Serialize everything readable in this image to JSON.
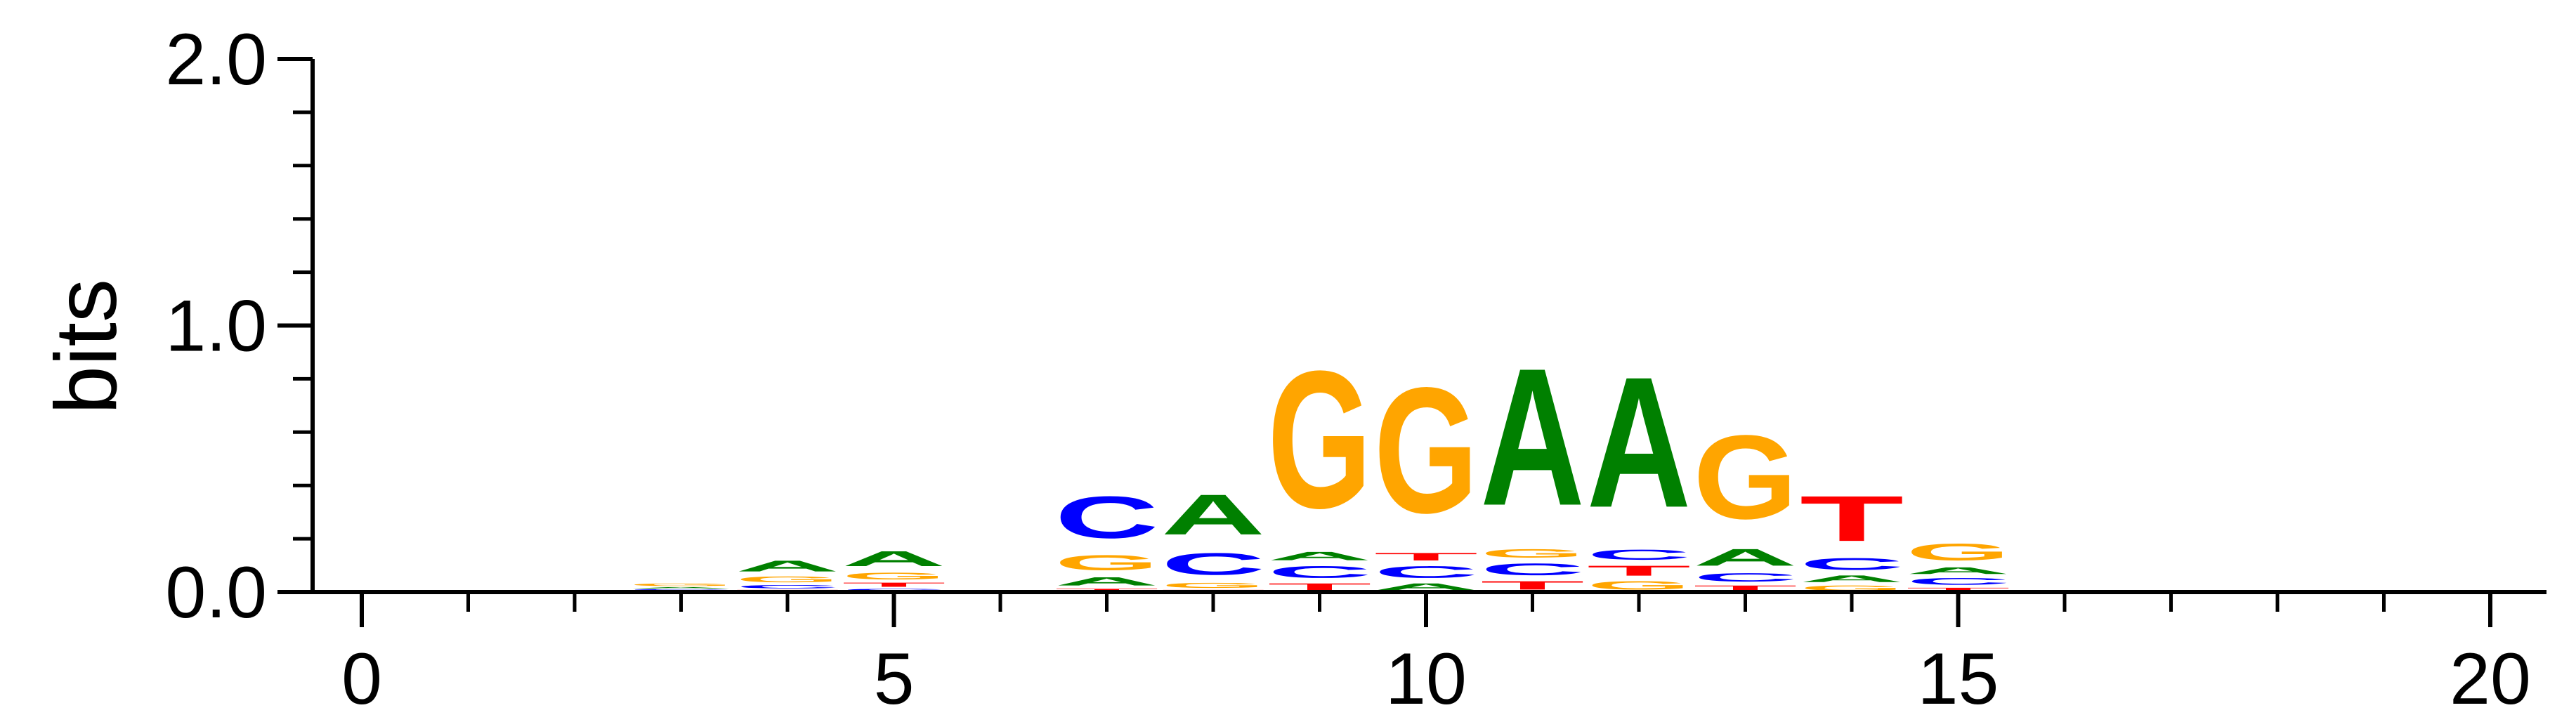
{
  "chart_data": {
    "type": "sequence-logo",
    "ylabel": "bits",
    "xlim": [
      0,
      20
    ],
    "ylim": [
      0,
      2.0
    ],
    "x_ticks": [
      0,
      5,
      10,
      15,
      20
    ],
    "y_ticks": [
      0.0,
      1.0,
      2.0
    ],
    "x_tick_labels": [
      "0",
      "5",
      "10",
      "15",
      "20"
    ],
    "y_tick_labels": [
      "0.0",
      "1.0",
      "2.0"
    ],
    "colors": {
      "A": "#008000",
      "C": "#0000ff",
      "G": "#ffa500",
      "T": "#ff0000"
    },
    "positions": [
      {
        "x": 3,
        "stack": [
          {
            "letter": "T",
            "bits": 0.005
          },
          {
            "letter": "C",
            "bits": 0.007
          },
          {
            "letter": "A",
            "bits": 0.008
          },
          {
            "letter": "G",
            "bits": 0.015
          }
        ]
      },
      {
        "x": 4,
        "stack": [
          {
            "letter": "T",
            "bits": 0.01
          },
          {
            "letter": "C",
            "bits": 0.02
          },
          {
            "letter": "G",
            "bits": 0.035
          },
          {
            "letter": "A",
            "bits": 0.065
          }
        ]
      },
      {
        "x": 5,
        "stack": [
          {
            "letter": "C",
            "bits": 0.015
          },
          {
            "letter": "T",
            "bits": 0.025
          },
          {
            "letter": "G",
            "bits": 0.04
          },
          {
            "letter": "A",
            "bits": 0.09
          }
        ]
      },
      {
        "x": 7,
        "stack": [
          {
            "letter": "T",
            "bits": 0.015
          },
          {
            "letter": "A",
            "bits": 0.05
          },
          {
            "letter": "G",
            "bits": 0.09
          },
          {
            "letter": "C",
            "bits": 0.25
          }
        ]
      },
      {
        "x": 8,
        "stack": [
          {
            "letter": "T",
            "bits": 0.01
          },
          {
            "letter": "G",
            "bits": 0.03
          },
          {
            "letter": "C",
            "bits": 0.13
          },
          {
            "letter": "A",
            "bits": 0.24
          }
        ]
      },
      {
        "x": 9,
        "stack": [
          {
            "letter": "T",
            "bits": 0.04
          },
          {
            "letter": "C",
            "bits": 0.07
          },
          {
            "letter": "A",
            "bits": 0.05
          },
          {
            "letter": "G",
            "bits": 0.82
          }
        ]
      },
      {
        "x": 10,
        "stack": [
          {
            "letter": "A",
            "bits": 0.04
          },
          {
            "letter": "C",
            "bits": 0.07
          },
          {
            "letter": "T",
            "bits": 0.045
          },
          {
            "letter": "G",
            "bits": 0.75
          }
        ]
      },
      {
        "x": 11,
        "stack": [
          {
            "letter": "T",
            "bits": 0.05
          },
          {
            "letter": "C",
            "bits": 0.07
          },
          {
            "letter": "G",
            "bits": 0.05
          },
          {
            "letter": "A",
            "bits": 0.82
          }
        ]
      },
      {
        "x": 12,
        "stack": [
          {
            "letter": "G",
            "bits": 0.05
          },
          {
            "letter": "T",
            "bits": 0.06
          },
          {
            "letter": "C",
            "bits": 0.06
          },
          {
            "letter": "A",
            "bits": 0.78
          }
        ]
      },
      {
        "x": 13,
        "stack": [
          {
            "letter": "T",
            "bits": 0.03
          },
          {
            "letter": "C",
            "bits": 0.05
          },
          {
            "letter": "A",
            "bits": 0.1
          },
          {
            "letter": "G",
            "bits": 0.5
          }
        ]
      },
      {
        "x": 14,
        "stack": [
          {
            "letter": "G",
            "bits": 0.03
          },
          {
            "letter": "A",
            "bits": 0.04
          },
          {
            "letter": "C",
            "bits": 0.07
          },
          {
            "letter": "T",
            "bits": 0.27
          }
        ]
      },
      {
        "x": 15,
        "stack": [
          {
            "letter": "T",
            "bits": 0.02
          },
          {
            "letter": "C",
            "bits": 0.04
          },
          {
            "letter": "A",
            "bits": 0.04
          },
          {
            "letter": "G",
            "bits": 0.1
          }
        ]
      }
    ]
  }
}
